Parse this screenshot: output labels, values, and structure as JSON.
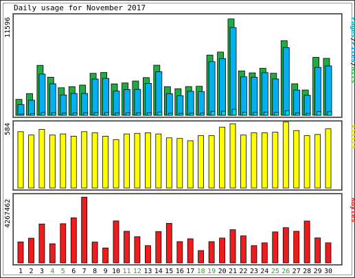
{
  "chart_data": {
    "type": "bar",
    "title": "Daily usage for November 2017",
    "categories": [
      "1",
      "2",
      "3",
      "4",
      "5",
      "6",
      "7",
      "8",
      "9",
      "10",
      "11",
      "12",
      "13",
      "14",
      "15",
      "16",
      "17",
      "18",
      "19",
      "20",
      "21",
      "22",
      "23",
      "24",
      "25",
      "26",
      "27",
      "28",
      "29",
      "30"
    ],
    "weekend_days": [
      "4",
      "5",
      "11",
      "12",
      "18",
      "19",
      "25",
      "26"
    ],
    "panels": [
      {
        "label_parts": [
          "Pages",
          "Files",
          "Hits"
        ],
        "max_label": "11596",
        "ylim": [
          0,
          11596
        ],
        "series": [
          {
            "name": "Hits",
            "color": "#22aa44",
            "values": [
              1850,
              2520,
              5780,
              4410,
              3190,
              3320,
              3500,
              4860,
              4960,
              3640,
              3750,
              3970,
              4370,
              5800,
              3320,
              3080,
              3330,
              3360,
              6970,
              7320,
              11150,
              5140,
              4920,
              5440,
              4870,
              8640,
              3650,
              2930,
              6710,
              6590
            ]
          },
          {
            "name": "Files",
            "color": "#00b0f0",
            "values": [
              1250,
              1750,
              4770,
              3650,
              2360,
              2530,
              2530,
              4200,
              4270,
              2800,
              2990,
              3000,
              3700,
              5050,
              2500,
              2260,
              2790,
              2740,
              6210,
              6570,
              10150,
              4460,
              4410,
              4940,
              4210,
              7840,
              2920,
              2320,
              5540,
              5720
            ]
          },
          {
            "name": "Pages",
            "color": "#00d8d8",
            "values": [
              160,
              200,
              320,
              290,
              250,
              260,
              270,
              310,
              320,
              260,
              270,
              280,
              300,
              380,
              240,
              230,
              250,
              250,
              460,
              480,
              700,
              350,
              340,
              370,
              330,
              540,
              260,
              230,
              420,
              410
            ]
          }
        ]
      },
      {
        "label_parts": [
          "Visits"
        ],
        "max_label": "584",
        "ylim": [
          0,
          584
        ],
        "series": [
          {
            "name": "Visits",
            "color": "#ffff00",
            "values": [
              500,
              470,
              520,
              470,
              480,
              460,
              500,
              490,
              460,
              430,
              480,
              485,
              490,
              480,
              445,
              440,
              420,
              465,
              465,
              540,
              570,
              470,
              490,
              490,
              495,
              585,
              510,
              465,
              475,
              525
            ]
          }
        ]
      },
      {
        "label_parts": [
          "KBytes"
        ],
        "max_label": "4267462",
        "ylim": [
          0,
          4267462
        ],
        "series": [
          {
            "name": "KBytes",
            "color": "#ee1c1c",
            "values": [
              1360000,
              1600000,
              2520000,
              1240000,
              2540000,
              2920000,
              4260000,
              1350000,
              970000,
              2720000,
              2050000,
              1700000,
              1120000,
              2030000,
              2560000,
              1380000,
              1560000,
              800000,
              1380000,
              1610000,
              2150000,
              1750000,
              1120000,
              1300000,
              2010000,
              2280000,
              2050000,
              2710000,
              1620000,
              1300000
            ]
          }
        ]
      }
    ]
  }
}
